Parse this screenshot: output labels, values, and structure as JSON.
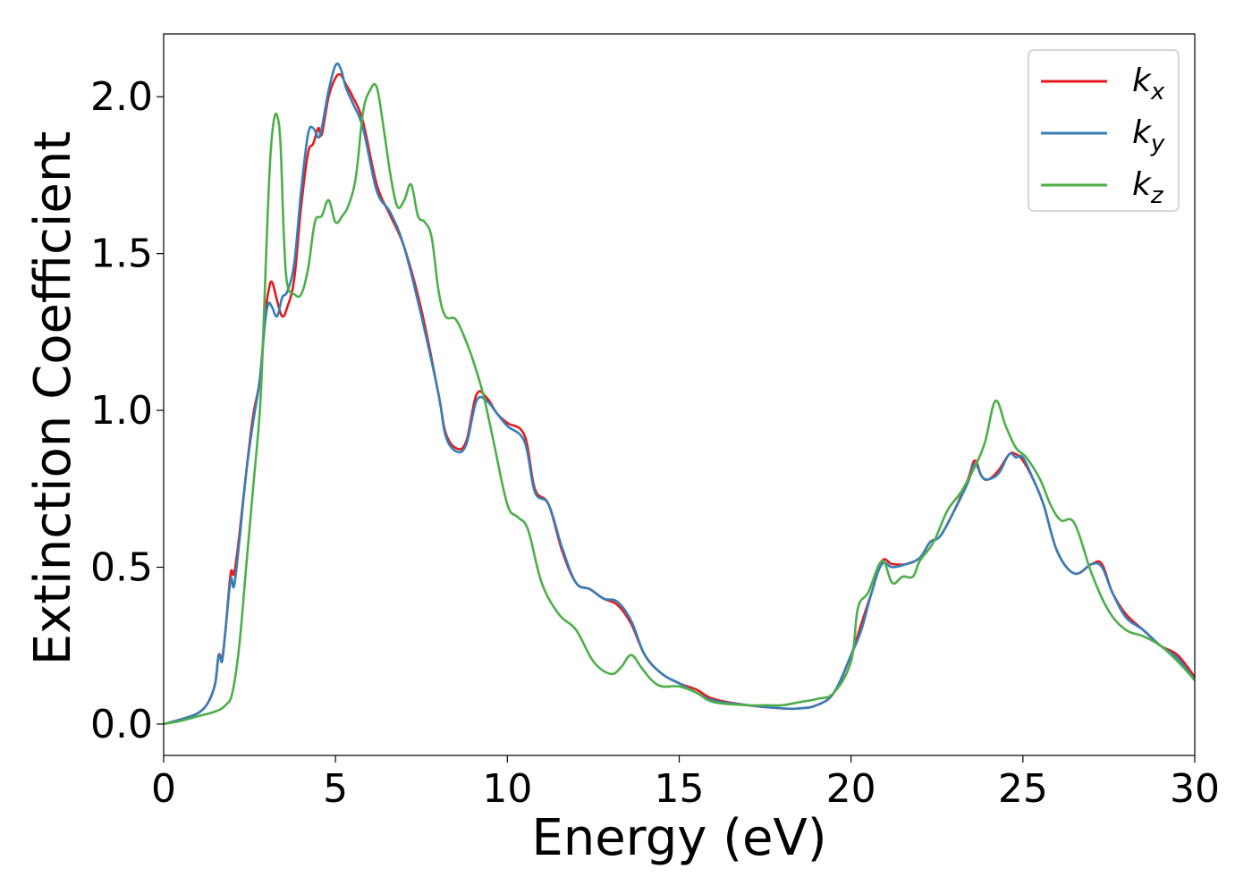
{
  "chart_data": {
    "type": "line",
    "xlabel": "Energy (eV)",
    "ylabel": "Extinction Coefficient",
    "xlim": [
      0,
      30
    ],
    "ylim": [
      -0.1,
      2.2
    ],
    "xticks": [
      0,
      5,
      10,
      15,
      20,
      25,
      30
    ],
    "xtick_labels": [
      "0",
      "5",
      "10",
      "15",
      "20",
      "25",
      "30"
    ],
    "yticks": [
      0.0,
      0.5,
      1.0,
      1.5,
      2.0
    ],
    "ytick_labels": [
      "0.0",
      "0.5",
      "1.0",
      "1.5",
      "2.0"
    ],
    "grid": false,
    "legend_position": "top-right",
    "series": [
      {
        "name": "k",
        "subscript": "x",
        "color": "#e41a1c",
        "x": [
          0,
          0.5,
          1.0,
          1.3,
          1.5,
          1.6,
          1.7,
          1.8,
          1.95,
          2.05,
          2.2,
          2.4,
          2.6,
          2.8,
          2.95,
          3.05,
          3.15,
          3.3,
          3.45,
          3.6,
          3.8,
          4.0,
          4.2,
          4.35,
          4.5,
          4.6,
          4.8,
          5.0,
          5.15,
          5.3,
          5.5,
          5.8,
          6.2,
          6.6,
          7.0,
          7.5,
          8.0,
          8.2,
          8.5,
          8.8,
          9.1,
          9.4,
          9.7,
          10.0,
          10.5,
          10.8,
          11.2,
          11.6,
          12.0,
          12.4,
          12.8,
          13.2,
          13.6,
          14.0,
          14.5,
          15.0,
          15.5,
          16.0,
          17.0,
          18.0,
          18.5,
          19.0,
          19.5,
          20.0,
          20.3,
          20.6,
          20.9,
          21.2,
          21.6,
          22.0,
          22.3,
          22.6,
          23.0,
          23.4,
          23.6,
          23.8,
          24.0,
          24.3,
          24.6,
          24.8,
          25.0,
          25.3,
          25.6,
          26.0,
          26.5,
          27.0,
          27.3,
          27.6,
          28.0,
          28.5,
          29.0,
          29.5,
          30.0
        ],
        "y": [
          0.0,
          0.015,
          0.035,
          0.07,
          0.13,
          0.22,
          0.21,
          0.3,
          0.48,
          0.48,
          0.6,
          0.8,
          0.98,
          1.1,
          1.3,
          1.38,
          1.41,
          1.35,
          1.3,
          1.33,
          1.42,
          1.65,
          1.82,
          1.85,
          1.9,
          1.88,
          2.0,
          2.06,
          2.07,
          2.04,
          2.0,
          1.92,
          1.72,
          1.62,
          1.52,
          1.32,
          1.05,
          0.93,
          0.88,
          0.9,
          1.05,
          1.04,
          0.99,
          0.96,
          0.92,
          0.75,
          0.7,
          0.55,
          0.45,
          0.43,
          0.4,
          0.38,
          0.32,
          0.22,
          0.16,
          0.13,
          0.11,
          0.08,
          0.06,
          0.05,
          0.05,
          0.06,
          0.1,
          0.22,
          0.32,
          0.42,
          0.52,
          0.51,
          0.51,
          0.53,
          0.58,
          0.6,
          0.68,
          0.78,
          0.84,
          0.79,
          0.78,
          0.81,
          0.86,
          0.86,
          0.84,
          0.78,
          0.7,
          0.55,
          0.48,
          0.51,
          0.51,
          0.42,
          0.35,
          0.3,
          0.25,
          0.22,
          0.15
        ]
      },
      {
        "name": "k",
        "subscript": "y",
        "color": "#377eb8",
        "x": [
          0,
          0.5,
          1.0,
          1.3,
          1.5,
          1.6,
          1.7,
          1.8,
          1.95,
          2.05,
          2.2,
          2.4,
          2.6,
          2.8,
          2.95,
          3.05,
          3.15,
          3.3,
          3.45,
          3.6,
          3.8,
          4.0,
          4.2,
          4.35,
          4.5,
          4.6,
          4.8,
          5.0,
          5.15,
          5.3,
          5.5,
          5.8,
          6.2,
          6.6,
          7.0,
          7.5,
          8.0,
          8.2,
          8.5,
          8.8,
          9.1,
          9.4,
          9.7,
          10.0,
          10.5,
          10.8,
          11.2,
          11.6,
          12.0,
          12.4,
          12.8,
          13.2,
          13.6,
          14.0,
          14.5,
          15.0,
          15.5,
          16.0,
          17.0,
          18.0,
          18.5,
          19.0,
          19.5,
          20.0,
          20.3,
          20.6,
          20.9,
          21.2,
          21.6,
          22.0,
          22.3,
          22.6,
          23.0,
          23.4,
          23.6,
          23.8,
          24.0,
          24.3,
          24.6,
          24.8,
          25.0,
          25.3,
          25.6,
          26.0,
          26.5,
          27.0,
          27.3,
          27.6,
          28.0,
          28.5,
          29.0,
          29.5,
          30.0
        ],
        "y": [
          0.0,
          0.015,
          0.035,
          0.07,
          0.13,
          0.22,
          0.2,
          0.3,
          0.46,
          0.44,
          0.58,
          0.8,
          0.96,
          1.1,
          1.28,
          1.34,
          1.33,
          1.3,
          1.36,
          1.38,
          1.47,
          1.7,
          1.88,
          1.9,
          1.87,
          1.9,
          2.02,
          2.1,
          2.09,
          2.03,
          1.98,
          1.9,
          1.7,
          1.63,
          1.52,
          1.3,
          1.05,
          0.92,
          0.87,
          0.89,
          1.03,
          1.03,
          0.99,
          0.95,
          0.9,
          0.74,
          0.7,
          0.56,
          0.45,
          0.43,
          0.4,
          0.39,
          0.33,
          0.22,
          0.16,
          0.13,
          0.1,
          0.075,
          0.06,
          0.05,
          0.05,
          0.06,
          0.1,
          0.22,
          0.3,
          0.42,
          0.51,
          0.5,
          0.51,
          0.53,
          0.58,
          0.6,
          0.68,
          0.77,
          0.83,
          0.79,
          0.78,
          0.8,
          0.86,
          0.85,
          0.85,
          0.78,
          0.7,
          0.55,
          0.48,
          0.51,
          0.5,
          0.42,
          0.34,
          0.3,
          0.25,
          0.21,
          0.14
        ]
      },
      {
        "name": "k",
        "subscript": "z",
        "color": "#4daf4a",
        "x": [
          0,
          0.5,
          1.0,
          1.5,
          1.8,
          2.0,
          2.2,
          2.4,
          2.6,
          2.8,
          2.9,
          3.0,
          3.1,
          3.2,
          3.3,
          3.4,
          3.5,
          3.6,
          3.8,
          4.0,
          4.2,
          4.4,
          4.6,
          4.8,
          5.0,
          5.2,
          5.4,
          5.6,
          5.8,
          6.0,
          6.2,
          6.4,
          6.6,
          6.8,
          7.0,
          7.2,
          7.4,
          7.6,
          7.8,
          8.0,
          8.2,
          8.5,
          8.8,
          9.0,
          9.3,
          9.6,
          10.0,
          10.3,
          10.6,
          11.0,
          11.5,
          12.0,
          12.5,
          13.0,
          13.3,
          13.6,
          13.9,
          14.2,
          14.5,
          15.0,
          15.5,
          16.0,
          17.0,
          17.5,
          18.0,
          18.5,
          19.0,
          19.5,
          20.0,
          20.2,
          20.5,
          20.9,
          21.2,
          21.5,
          21.8,
          22.0,
          22.4,
          22.8,
          23.2,
          23.6,
          23.9,
          24.2,
          24.5,
          24.8,
          25.1,
          25.5,
          25.8,
          26.1,
          26.5,
          27.0,
          27.5,
          28.0,
          28.5,
          29.0,
          29.5,
          30.0
        ],
        "y": [
          0.0,
          0.01,
          0.025,
          0.04,
          0.06,
          0.1,
          0.25,
          0.5,
          0.75,
          1.0,
          1.25,
          1.55,
          1.8,
          1.92,
          1.94,
          1.85,
          1.55,
          1.4,
          1.37,
          1.37,
          1.45,
          1.6,
          1.62,
          1.67,
          1.6,
          1.62,
          1.66,
          1.75,
          1.95,
          2.02,
          2.03,
          1.9,
          1.75,
          1.65,
          1.67,
          1.72,
          1.62,
          1.6,
          1.55,
          1.38,
          1.3,
          1.29,
          1.22,
          1.16,
          1.05,
          0.9,
          0.7,
          0.66,
          0.62,
          0.45,
          0.35,
          0.3,
          0.2,
          0.16,
          0.18,
          0.22,
          0.18,
          0.14,
          0.12,
          0.12,
          0.1,
          0.07,
          0.06,
          0.06,
          0.06,
          0.07,
          0.08,
          0.1,
          0.2,
          0.37,
          0.42,
          0.52,
          0.45,
          0.47,
          0.47,
          0.52,
          0.58,
          0.68,
          0.74,
          0.82,
          0.9,
          1.03,
          0.95,
          0.88,
          0.85,
          0.78,
          0.7,
          0.65,
          0.64,
          0.48,
          0.36,
          0.3,
          0.28,
          0.25,
          0.2,
          0.14
        ]
      }
    ]
  }
}
